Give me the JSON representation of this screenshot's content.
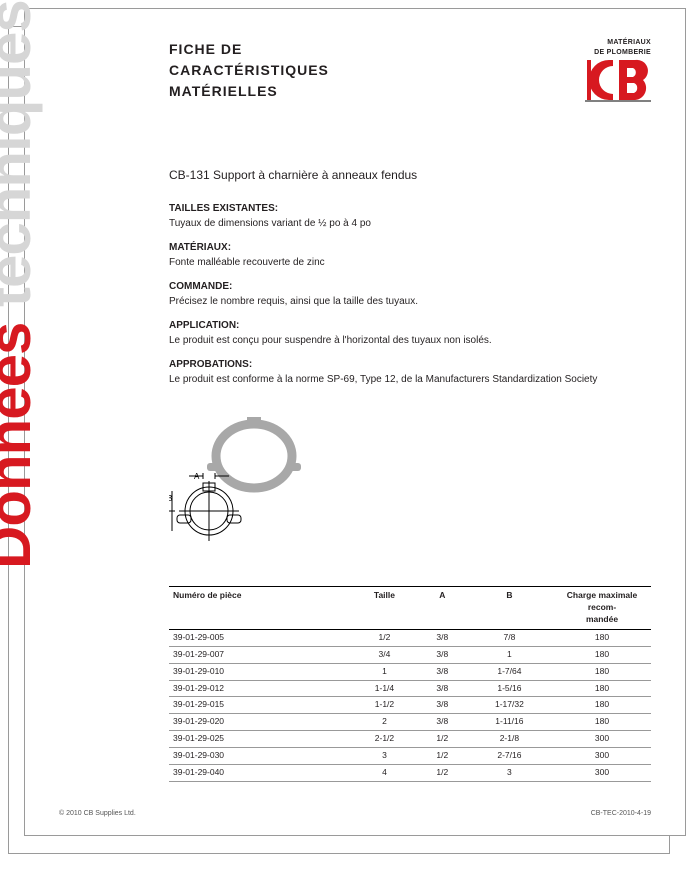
{
  "rotated": {
    "red": "Données",
    "grey": " techniques"
  },
  "header": {
    "line1": "FICHE DE",
    "line2": "CARACTÉRISTIQUES",
    "line3": "MATÉRIELLES",
    "logo_caption_line1": "MATÉRIAUX",
    "logo_caption_line2": "DE PLOMBERIE",
    "logo_color": "#d71920"
  },
  "subtitle": "CB-131 Support à charnière à anneaux fendus",
  "sections": [
    {
      "label": "TAILLES EXISTANTES:",
      "text": "Tuyaux de dimensions variant de ½ po à 4 po"
    },
    {
      "label": "MATÉRIAUX:",
      "text": "Fonte malléable recouverte de zinc"
    },
    {
      "label": "COMMANDE:",
      "text": "Précisez le nombre requis, ainsi que la taille des tuyaux."
    },
    {
      "label": "APPLICATION:",
      "text": "Le produit est conçu pour suspendre à l'horizontal des tuyaux non isolés."
    },
    {
      "label": "APPROBATIONS:",
      "text": "Le produit est conforme à la norme SP-69, Type 12, de la Manufacturers Standardization Society"
    }
  ],
  "table": {
    "columns": [
      "Numéro de pièce",
      "Taille",
      "A",
      "B",
      "Charge maximale recom-\nmandée"
    ],
    "col_align": [
      "left",
      "center",
      "center",
      "center",
      "center"
    ],
    "rows": [
      [
        "39-01-29-005",
        "1/2",
        "3/8",
        "7/8",
        "180"
      ],
      [
        "39-01-29-007",
        "3/4",
        "3/8",
        "1",
        "180"
      ],
      [
        "39-01-29-010",
        "1",
        "3/8",
        "1-7/64",
        "180"
      ],
      [
        "39-01-29-012",
        "1-1/4",
        "3/8",
        "1-5/16",
        "180"
      ],
      [
        "39-01-29-015",
        "1-1/2",
        "3/8",
        "1-17/32",
        "180"
      ],
      [
        "39-01-29-020",
        "2",
        "3/8",
        "1-11/16",
        "180"
      ],
      [
        "39-01-29-025",
        "2-1/2",
        "1/2",
        "2-1/8",
        "300"
      ],
      [
        "39-01-29-030",
        "3",
        "1/2",
        "2-7/16",
        "300"
      ],
      [
        "39-01-29-040",
        "4",
        "1/2",
        "3",
        "300"
      ]
    ]
  },
  "diagram": {
    "photo_ring_color": "#a8a8a8",
    "line_color": "#000000",
    "label_A": "A",
    "label_B": "B"
  },
  "footer": {
    "left": "© 2010 CB Supplies Ltd.",
    "right": "CB-TEC-2010-4-19"
  }
}
